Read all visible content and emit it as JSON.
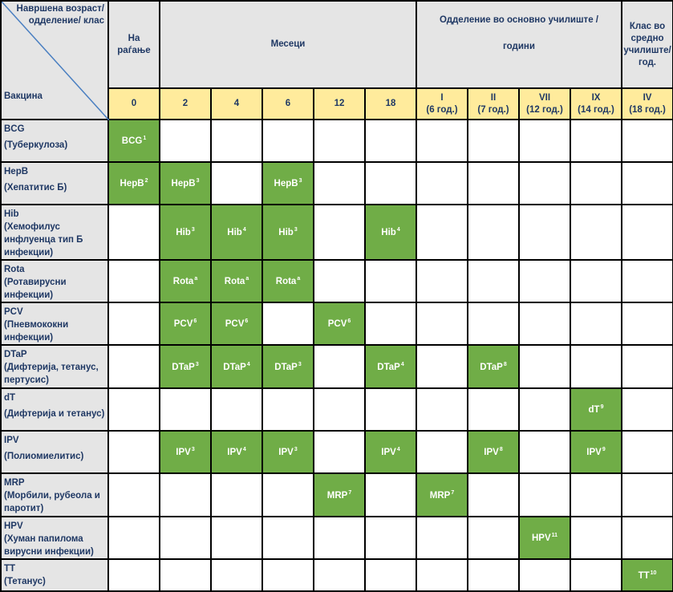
{
  "header": {
    "corner_top": [
      "Навршена возраст/",
      "одделение/",
      "клас"
    ],
    "corner_bottom": "Вакцина",
    "birth": [
      "На",
      "раѓање"
    ],
    "months": "Месеци",
    "school": [
      "Одделение во основно училиште /",
      "години"
    ],
    "high": [
      "Клас во",
      "средно",
      "училиште/",
      "год."
    ]
  },
  "columns": [
    {
      "l1": "0",
      "l2": ""
    },
    {
      "l1": "2",
      "l2": ""
    },
    {
      "l1": "4",
      "l2": ""
    },
    {
      "l1": "6",
      "l2": ""
    },
    {
      "l1": "12",
      "l2": ""
    },
    {
      "l1": "18",
      "l2": ""
    },
    {
      "l1": "I",
      "l2": "(6 год.)"
    },
    {
      "l1": "II",
      "l2": "(7 год.)"
    },
    {
      "l1": "VII",
      "l2": "(12 год.)"
    },
    {
      "l1": "IX",
      "l2": "(14 год.)"
    },
    {
      "l1": "IV",
      "l2": "(18 год.)"
    }
  ],
  "rows": [
    {
      "name": "BCG",
      "desc": [
        "(Туберкулоза)"
      ],
      "cells": {
        "0": {
          "t": "BCG",
          "s": "1"
        }
      }
    },
    {
      "name": "HepB",
      "desc": [
        "(Хепатитис Б)"
      ],
      "cells": {
        "0": {
          "t": "HepB",
          "s": "2"
        },
        "1": {
          "t": "HepB",
          "s": "3"
        },
        "3": {
          "t": "HepB",
          "s": "3"
        }
      }
    },
    {
      "name": "Hib",
      "desc": [
        "(Хемофилус",
        "инфлуенца тип Б",
        "инфекции)"
      ],
      "cells": {
        "1": {
          "t": "Hib",
          "s": "3"
        },
        "2": {
          "t": "Hib",
          "s": "4"
        },
        "3": {
          "t": "Hib",
          "s": "3"
        },
        "5": {
          "t": "Hib",
          "s": "4"
        }
      }
    },
    {
      "name": "Rota",
      "desc": [
        "(Ротавирусни",
        "инфекции)"
      ],
      "cells": {
        "1": {
          "t": "Rota",
          "s": "a"
        },
        "2": {
          "t": "Rota",
          "s": "a"
        },
        "3": {
          "t": "Rota",
          "s": "a"
        }
      }
    },
    {
      "name": "PCV",
      "desc": [
        "(Пневмококни",
        "инфекции)"
      ],
      "cells": {
        "1": {
          "t": "PCV",
          "s": "6"
        },
        "2": {
          "t": "PCV",
          "s": "6"
        },
        "4": {
          "t": "PCV",
          "s": "6"
        }
      }
    },
    {
      "name": "DTaP",
      "desc": [
        "(Дифтерија, тетанус,",
        "пертусис)"
      ],
      "cells": {
        "1": {
          "t": "DTaP",
          "s": "3"
        },
        "2": {
          "t": "DTaP",
          "s": "4"
        },
        "3": {
          "t": "DTaP",
          "s": "3"
        },
        "5": {
          "t": "DTaP",
          "s": "4"
        },
        "7": {
          "t": "DTaP",
          "s": "8"
        }
      }
    },
    {
      "name": "dT",
      "desc": [
        "(Дифтерија и тетанус)"
      ],
      "cells": {
        "9": {
          "t": "dT",
          "s": "9"
        }
      }
    },
    {
      "name": "IPV",
      "desc": [
        "(Полиомиелитис)"
      ],
      "cells": {
        "1": {
          "t": "IPV",
          "s": "3"
        },
        "2": {
          "t": "IPV",
          "s": "4"
        },
        "3": {
          "t": "IPV",
          "s": "3"
        },
        "5": {
          "t": "IPV",
          "s": "4"
        },
        "7": {
          "t": "IPV",
          "s": "8"
        },
        "9": {
          "t": "IPV",
          "s": "9"
        }
      }
    },
    {
      "name": "MRP",
      "desc": [
        "(Морбили,  рубеола и",
        "паротит)"
      ],
      "cells": {
        "4": {
          "t": "MRP",
          "s": "7"
        },
        "6": {
          "t": "MRP",
          "s": "7"
        }
      }
    },
    {
      "name": "HPV",
      "desc": [
        "(Хуман папилома",
        "вирусни инфекции)"
      ],
      "cells": {
        "8": {
          "t": "HPV",
          "s": "11"
        }
      }
    },
    {
      "name": "TT",
      "desc": [
        "(Тетанус)"
      ],
      "cells": {
        "10": {
          "t": "TT",
          "s": "10"
        }
      }
    }
  ],
  "colors": {
    "header_bg": "#e5e5e5",
    "subheader_bg": "#ffeb9c",
    "dose_bg": "#70ad47",
    "text": "#1f3864"
  }
}
